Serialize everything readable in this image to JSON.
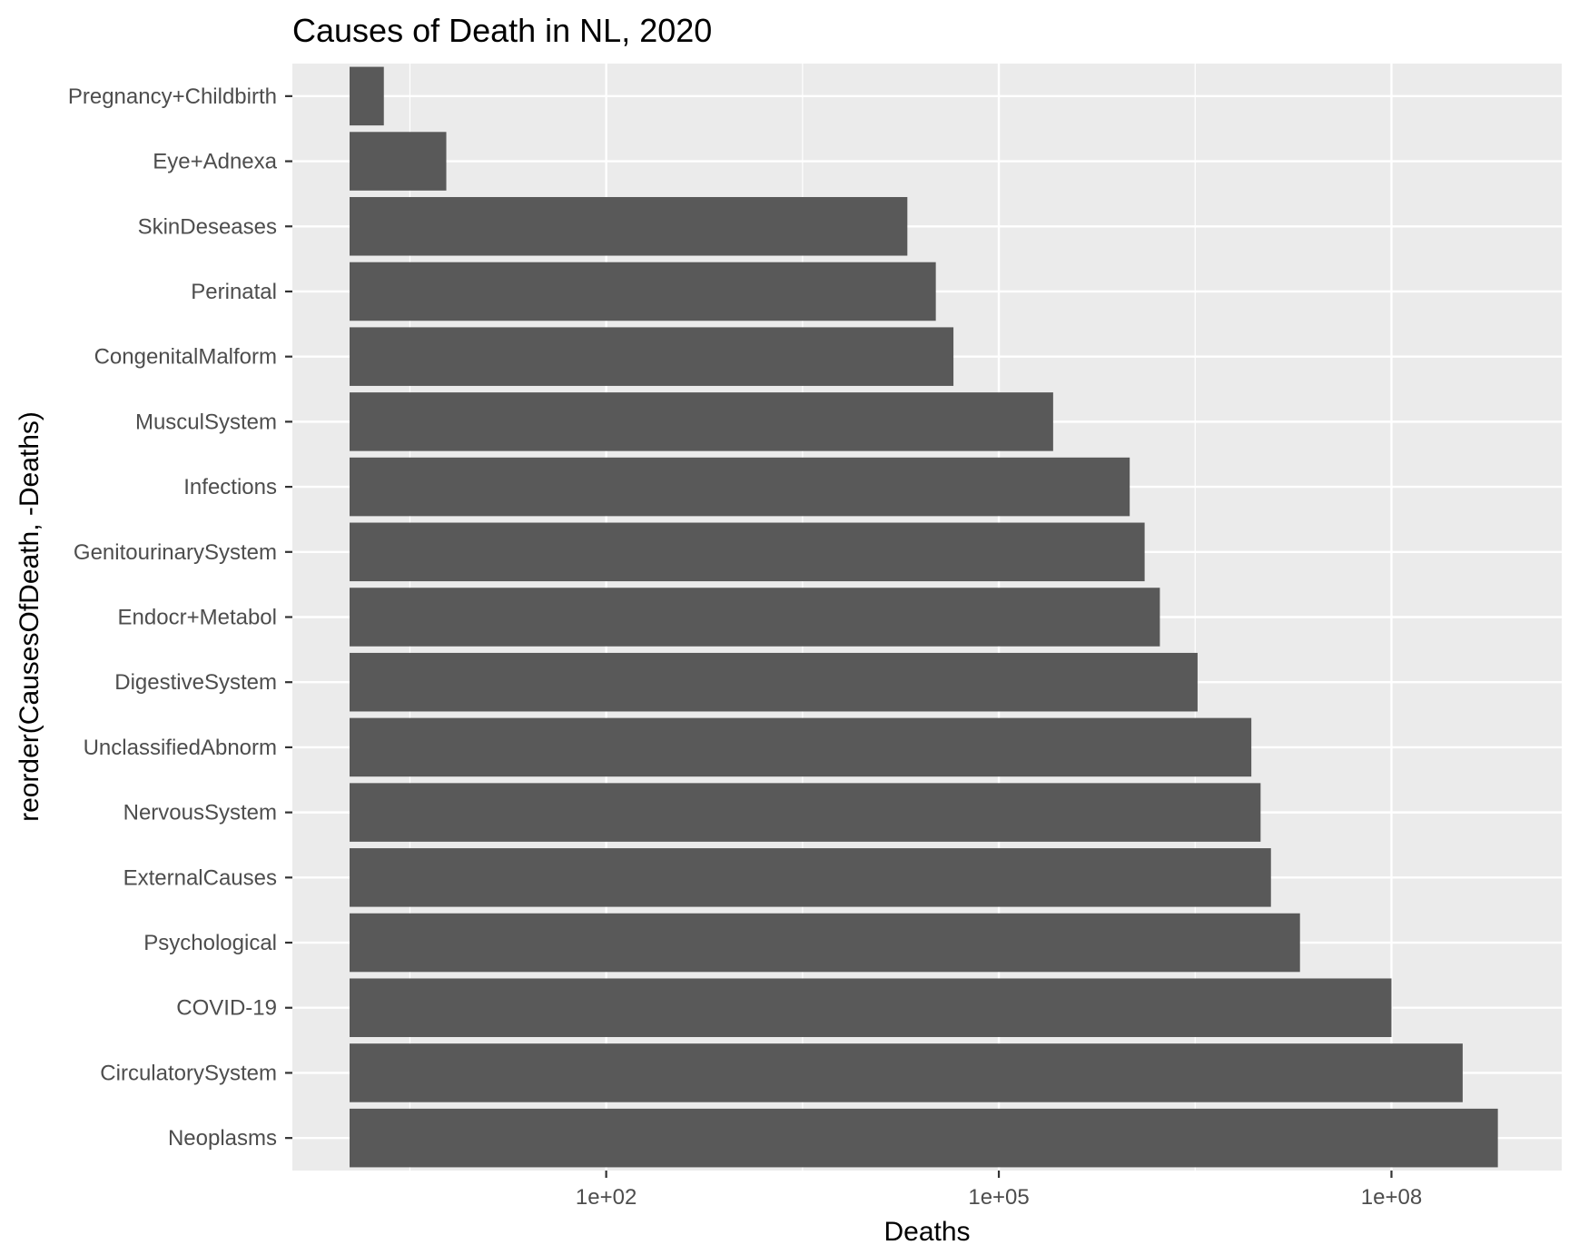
{
  "chart_data": {
    "type": "bar",
    "orientation": "horizontal",
    "title": "Causes of Death in NL, 2020",
    "xlabel": "Deaths",
    "ylabel": "reorder(CausesOfDeath, -Deaths)",
    "xscale": "log10",
    "xlim": [
      0.4,
      2000000000
    ],
    "xticks": [
      100,
      100000,
      100000000
    ],
    "xtick_labels": [
      "1e+02",
      "1e+05",
      "1e+08"
    ],
    "categories": [
      "Neoplasms",
      "CirculatorySystem",
      "COVID-19",
      "Psychological",
      "ExternalCauses",
      "NervousSystem",
      "UnclassifiedAbnorm",
      "DigestiveSystem",
      "Endocr+Metabol",
      "GenitourinarySystem",
      "Infections",
      "MusculSystem",
      "CongenitalMalform",
      "Perinatal",
      "SkinDeseases",
      "Eye+Adnexa",
      "Pregnancy+Childbirth"
    ],
    "values": [
      650000000,
      350000000,
      100000000,
      20000000,
      12000000,
      10000000,
      8500000,
      3300000,
      1700000,
      1300000,
      1000000,
      260000,
      45000,
      33000,
      20000,
      6,
      2
    ],
    "grid": true,
    "legend": "none",
    "bar_color": "#595959",
    "panel_background": "#ebebeb",
    "grid_color": "#ffffff"
  }
}
